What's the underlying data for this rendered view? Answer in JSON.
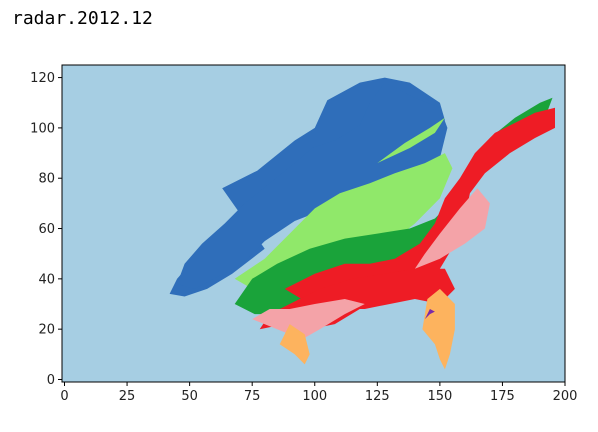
{
  "cell": {
    "title": "radar.2012.12"
  },
  "chart_data": {
    "type": "heatmap",
    "title": "",
    "xlabel": "",
    "ylabel": "",
    "xlim": [
      -1,
      200
    ],
    "ylim": [
      -1,
      125
    ],
    "xticks": [
      0,
      25,
      50,
      75,
      100,
      125,
      150,
      175,
      200
    ],
    "yticks": [
      0,
      20,
      40,
      60,
      80,
      100,
      120
    ],
    "grid": false,
    "legend": "none",
    "colors": {
      "background": "#a6cee3",
      "dark_blue": "#2f6eba",
      "light_green": "#90e86a",
      "green": "#1aa33a",
      "pink": "#f4a3a8",
      "orange": "#fdb35e",
      "red": "#ee1c25",
      "purple": "#7a2aa8"
    },
    "regions": [
      {
        "class": "dark_blue",
        "polygon": [
          [
            63,
            76
          ],
          [
            77,
            83
          ],
          [
            92,
            95
          ],
          [
            100,
            100
          ],
          [
            105,
            111
          ],
          [
            118,
            118
          ],
          [
            128,
            120
          ],
          [
            138,
            118
          ],
          [
            150,
            110
          ],
          [
            152,
            103
          ],
          [
            141,
            95
          ],
          [
            135,
            88
          ],
          [
            122,
            80
          ],
          [
            110,
            78
          ],
          [
            95,
            74
          ],
          [
            82,
            68
          ],
          [
            72,
            60
          ],
          [
            60,
            54
          ],
          [
            52,
            48
          ],
          [
            45,
            40
          ],
          [
            42,
            34
          ],
          [
            48,
            33
          ],
          [
            57,
            36
          ],
          [
            67,
            42
          ],
          [
            80,
            52
          ]
        ]
      },
      {
        "class": "dark_blue",
        "polygon": [
          [
            71,
            46
          ],
          [
            80,
            55
          ],
          [
            92,
            63
          ],
          [
            110,
            70
          ],
          [
            125,
            77
          ],
          [
            140,
            82
          ],
          [
            150,
            88
          ],
          [
            153,
            100
          ],
          [
            150,
            108
          ],
          [
            140,
            112
          ],
          [
            128,
            118
          ],
          [
            122,
            110
          ],
          [
            118,
            101
          ],
          [
            108,
            95
          ],
          [
            99,
            92
          ],
          [
            92,
            86
          ],
          [
            82,
            78
          ],
          [
            72,
            70
          ],
          [
            64,
            62
          ],
          [
            55,
            54
          ],
          [
            48,
            46
          ],
          [
            45,
            38
          ],
          [
            52,
            36
          ]
        ]
      },
      {
        "class": "light_green",
        "polygon": [
          [
            68,
            40
          ],
          [
            80,
            48
          ],
          [
            90,
            58
          ],
          [
            100,
            68
          ],
          [
            110,
            74
          ],
          [
            122,
            78
          ],
          [
            132,
            82
          ],
          [
            144,
            86
          ],
          [
            152,
            90
          ],
          [
            155,
            84
          ],
          [
            150,
            72
          ],
          [
            140,
            62
          ],
          [
            130,
            54
          ],
          [
            118,
            48
          ],
          [
            100,
            42
          ],
          [
            85,
            38
          ],
          [
            75,
            36
          ]
        ]
      },
      {
        "class": "light_green",
        "polygon": [
          [
            125,
            86
          ],
          [
            138,
            92
          ],
          [
            148,
            98
          ],
          [
            152,
            104
          ],
          [
            146,
            100
          ],
          [
            136,
            94
          ]
        ]
      },
      {
        "class": "green",
        "polygon": [
          [
            68,
            30
          ],
          [
            75,
            40
          ],
          [
            85,
            46
          ],
          [
            98,
            52
          ],
          [
            112,
            56
          ],
          [
            125,
            58
          ],
          [
            138,
            60
          ],
          [
            148,
            64
          ],
          [
            154,
            70
          ],
          [
            160,
            76
          ],
          [
            165,
            86
          ],
          [
            170,
            96
          ],
          [
            180,
            104
          ],
          [
            190,
            110
          ],
          [
            195,
            112
          ],
          [
            192,
            104
          ],
          [
            185,
            98
          ],
          [
            175,
            92
          ],
          [
            165,
            84
          ],
          [
            158,
            72
          ],
          [
            150,
            58
          ],
          [
            140,
            48
          ],
          [
            128,
            40
          ],
          [
            112,
            34
          ],
          [
            100,
            30
          ],
          [
            88,
            26
          ],
          [
            76,
            26
          ]
        ]
      },
      {
        "class": "red",
        "polygon": [
          [
            88,
            36
          ],
          [
            100,
            42
          ],
          [
            112,
            46
          ],
          [
            122,
            46
          ],
          [
            132,
            48
          ],
          [
            142,
            54
          ],
          [
            148,
            62
          ],
          [
            152,
            72
          ],
          [
            158,
            80
          ],
          [
            164,
            90
          ],
          [
            172,
            98
          ],
          [
            180,
            102
          ],
          [
            188,
            106
          ],
          [
            196,
            108
          ],
          [
            196,
            100
          ],
          [
            188,
            96
          ],
          [
            178,
            90
          ],
          [
            168,
            82
          ],
          [
            162,
            74
          ],
          [
            160,
            64
          ],
          [
            156,
            54
          ],
          [
            150,
            44
          ],
          [
            145,
            36
          ],
          [
            140,
            32
          ],
          [
            130,
            30
          ],
          [
            120,
            28
          ],
          [
            110,
            28
          ],
          [
            98,
            30
          ]
        ]
      },
      {
        "class": "red",
        "polygon": [
          [
            78,
            20
          ],
          [
            88,
            22
          ],
          [
            98,
            20
          ],
          [
            108,
            22
          ],
          [
            118,
            28
          ],
          [
            128,
            32
          ],
          [
            140,
            32
          ],
          [
            150,
            30
          ],
          [
            156,
            36
          ],
          [
            152,
            44
          ],
          [
            140,
            44
          ],
          [
            128,
            42
          ],
          [
            115,
            40
          ],
          [
            102,
            36
          ],
          [
            90,
            30
          ],
          [
            82,
            26
          ]
        ]
      },
      {
        "class": "pink",
        "polygon": [
          [
            75,
            24
          ],
          [
            85,
            20
          ],
          [
            95,
            16
          ],
          [
            102,
            20
          ],
          [
            112,
            26
          ],
          [
            120,
            30
          ],
          [
            112,
            32
          ],
          [
            100,
            30
          ],
          [
            90,
            28
          ],
          [
            82,
            28
          ]
        ]
      },
      {
        "class": "pink",
        "polygon": [
          [
            140,
            44
          ],
          [
            150,
            48
          ],
          [
            160,
            54
          ],
          [
            168,
            60
          ],
          [
            170,
            70
          ],
          [
            165,
            76
          ],
          [
            158,
            68
          ],
          [
            150,
            58
          ],
          [
            144,
            50
          ]
        ]
      },
      {
        "class": "orange",
        "polygon": [
          [
            143,
            20
          ],
          [
            148,
            14
          ],
          [
            150,
            8
          ],
          [
            152,
            4
          ],
          [
            154,
            10
          ],
          [
            156,
            20
          ],
          [
            156,
            30
          ],
          [
            150,
            36
          ],
          [
            145,
            32
          ]
        ]
      },
      {
        "class": "orange",
        "polygon": [
          [
            86,
            14
          ],
          [
            92,
            10
          ],
          [
            96,
            6
          ],
          [
            98,
            10
          ],
          [
            96,
            18
          ],
          [
            90,
            22
          ]
        ]
      },
      {
        "class": "purple",
        "polygon": [
          [
            144,
            24
          ],
          [
            146,
            26
          ],
          [
            148,
            27
          ],
          [
            146,
            28
          ]
        ]
      }
    ]
  }
}
